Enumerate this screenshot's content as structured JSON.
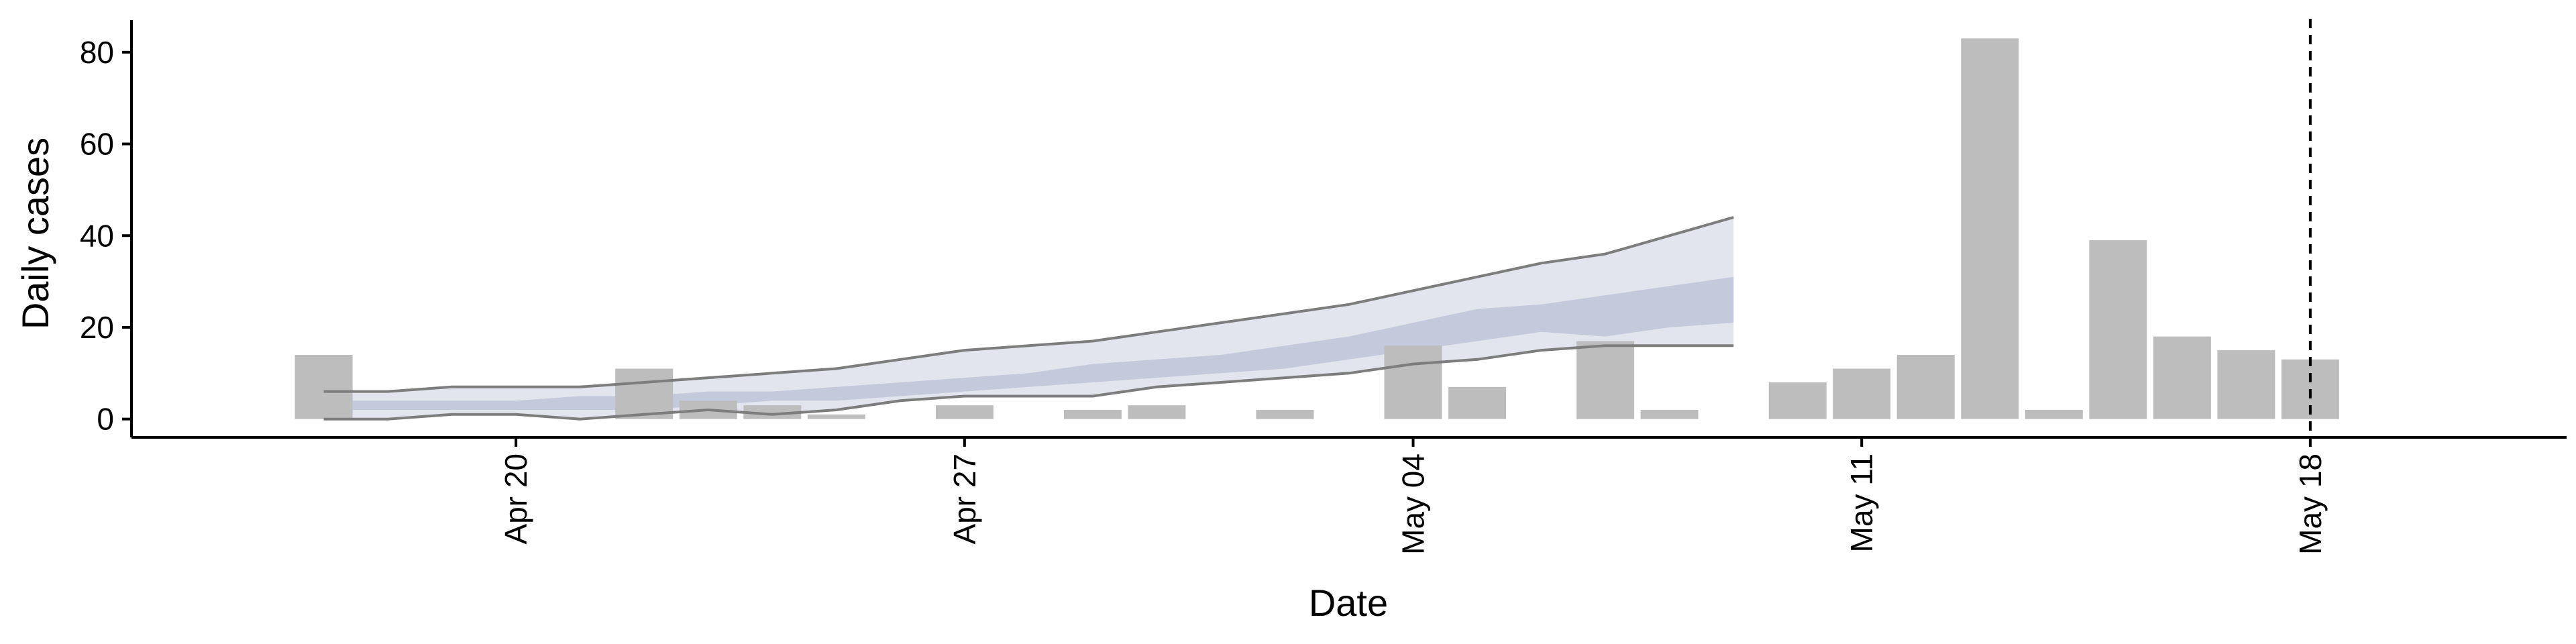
{
  "chart_data": {
    "type": "bar",
    "xlabel": "Date",
    "ylabel": "Daily cases",
    "ylim": [
      -4,
      87
    ],
    "xlim": [
      "2020-04-14",
      "2020-05-22"
    ],
    "x_ticks": [
      {
        "date": "2020-04-20",
        "label": "Apr 20"
      },
      {
        "date": "2020-04-27",
        "label": "Apr 27"
      },
      {
        "date": "2020-05-04",
        "label": "May 04"
      },
      {
        "date": "2020-05-11",
        "label": "May 11"
      },
      {
        "date": "2020-05-18",
        "label": "May 18"
      }
    ],
    "y_ticks": [
      0,
      20,
      40,
      60,
      80
    ],
    "grid": false,
    "bar_color": "#bdbdbd",
    "observed_cases": [
      {
        "date": "2020-04-17",
        "value": 14
      },
      {
        "date": "2020-04-18",
        "value": 0
      },
      {
        "date": "2020-04-19",
        "value": 0
      },
      {
        "date": "2020-04-20",
        "value": 0
      },
      {
        "date": "2020-04-21",
        "value": 0
      },
      {
        "date": "2020-04-22",
        "value": 11
      },
      {
        "date": "2020-04-23",
        "value": 4
      },
      {
        "date": "2020-04-24",
        "value": 3
      },
      {
        "date": "2020-04-25",
        "value": 1
      },
      {
        "date": "2020-04-26",
        "value": 0
      },
      {
        "date": "2020-04-27",
        "value": 3
      },
      {
        "date": "2020-04-28",
        "value": 0
      },
      {
        "date": "2020-04-29",
        "value": 2
      },
      {
        "date": "2020-04-30",
        "value": 3
      },
      {
        "date": "2020-05-01",
        "value": 0
      },
      {
        "date": "2020-05-02",
        "value": 2
      },
      {
        "date": "2020-05-03",
        "value": 0
      },
      {
        "date": "2020-05-04",
        "value": 16
      },
      {
        "date": "2020-05-05",
        "value": 7
      },
      {
        "date": "2020-05-06",
        "value": 0
      },
      {
        "date": "2020-05-07",
        "value": 17
      },
      {
        "date": "2020-05-08",
        "value": 2
      },
      {
        "date": "2020-05-09",
        "value": 0
      },
      {
        "date": "2020-05-10",
        "value": 8
      },
      {
        "date": "2020-05-11",
        "value": 11
      },
      {
        "date": "2020-05-12",
        "value": 14
      },
      {
        "date": "2020-05-13",
        "value": 83
      },
      {
        "date": "2020-05-14",
        "value": 2
      },
      {
        "date": "2020-05-15",
        "value": 39
      },
      {
        "date": "2020-05-16",
        "value": 18
      },
      {
        "date": "2020-05-17",
        "value": 15
      },
      {
        "date": "2020-05-18",
        "value": 13
      }
    ],
    "estimate_band": {
      "outer_color": "#e3e5ee",
      "inner_color": "#c4c9dc",
      "outer_line_color": "#7d7d7d",
      "points": [
        {
          "date": "2020-04-17",
          "outer_low": 0,
          "inner_low": 2,
          "inner_high": 4,
          "outer_high": 6
        },
        {
          "date": "2020-04-18",
          "outer_low": 0,
          "inner_low": 2,
          "inner_high": 4,
          "outer_high": 6
        },
        {
          "date": "2020-04-19",
          "outer_low": 1,
          "inner_low": 2,
          "inner_high": 4,
          "outer_high": 7
        },
        {
          "date": "2020-04-20",
          "outer_low": 1,
          "inner_low": 2,
          "inner_high": 4,
          "outer_high": 7
        },
        {
          "date": "2020-04-21",
          "outer_low": 0,
          "inner_low": 2,
          "inner_high": 5,
          "outer_high": 7
        },
        {
          "date": "2020-04-22",
          "outer_low": 1,
          "inner_low": 2,
          "inner_high": 5,
          "outer_high": 8
        },
        {
          "date": "2020-04-23",
          "outer_low": 2,
          "inner_low": 3,
          "inner_high": 6,
          "outer_high": 9
        },
        {
          "date": "2020-04-24",
          "outer_low": 1,
          "inner_low": 4,
          "inner_high": 6,
          "outer_high": 10
        },
        {
          "date": "2020-04-25",
          "outer_low": 2,
          "inner_low": 4,
          "inner_high": 7,
          "outer_high": 11
        },
        {
          "date": "2020-04-26",
          "outer_low": 4,
          "inner_low": 5,
          "inner_high": 8,
          "outer_high": 13
        },
        {
          "date": "2020-04-27",
          "outer_low": 5,
          "inner_low": 6,
          "inner_high": 9,
          "outer_high": 15
        },
        {
          "date": "2020-04-28",
          "outer_low": 5,
          "inner_low": 7,
          "inner_high": 10,
          "outer_high": 16
        },
        {
          "date": "2020-04-29",
          "outer_low": 5,
          "inner_low": 8,
          "inner_high": 12,
          "outer_high": 17
        },
        {
          "date": "2020-04-30",
          "outer_low": 7,
          "inner_low": 9,
          "inner_high": 13,
          "outer_high": 19
        },
        {
          "date": "2020-05-01",
          "outer_low": 8,
          "inner_low": 10,
          "inner_high": 14,
          "outer_high": 21
        },
        {
          "date": "2020-05-02",
          "outer_low": 9,
          "inner_low": 11,
          "inner_high": 16,
          "outer_high": 23
        },
        {
          "date": "2020-05-03",
          "outer_low": 10,
          "inner_low": 13,
          "inner_high": 18,
          "outer_high": 25
        },
        {
          "date": "2020-05-04",
          "outer_low": 12,
          "inner_low": 15,
          "inner_high": 21,
          "outer_high": 28
        },
        {
          "date": "2020-05-05",
          "outer_low": 13,
          "inner_low": 17,
          "inner_high": 24,
          "outer_high": 31
        },
        {
          "date": "2020-05-06",
          "outer_low": 15,
          "inner_low": 19,
          "inner_high": 25,
          "outer_high": 34
        },
        {
          "date": "2020-05-07",
          "outer_low": 16,
          "inner_low": 18,
          "inner_high": 27,
          "outer_high": 36
        },
        {
          "date": "2020-05-08",
          "outer_low": 16,
          "inner_low": 20,
          "inner_high": 29,
          "outer_high": 40
        },
        {
          "date": "2020-05-09",
          "outer_low": 16,
          "inner_low": 21,
          "inner_high": 31,
          "outer_high": 44
        }
      ]
    },
    "reference_line": {
      "date": "2020-05-18",
      "style": "dashed",
      "color": "#000000"
    }
  }
}
